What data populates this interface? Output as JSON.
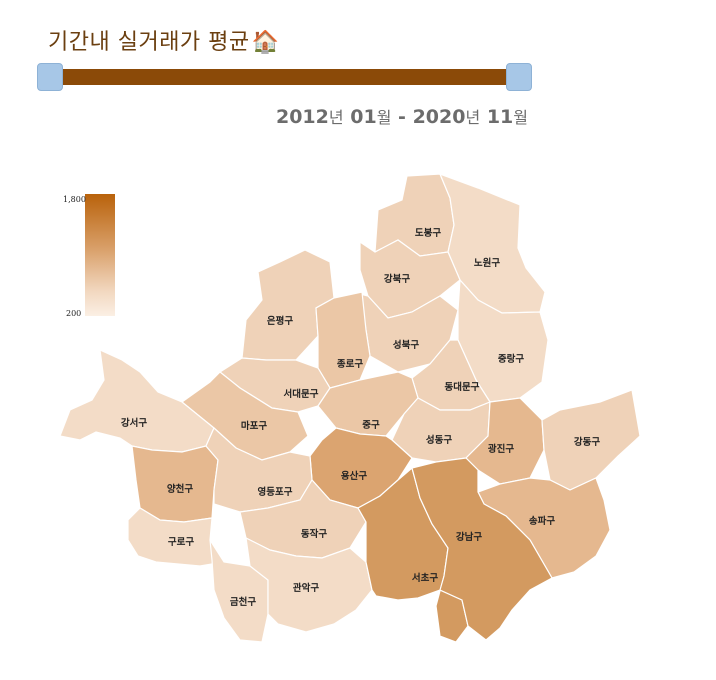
{
  "title": "기간내 실거래가 평균",
  "title_icon": "house-emoji",
  "period": {
    "start_year": "2012",
    "start_month": "01",
    "end_year": "2020",
    "end_month": "11",
    "year_unit": "년",
    "month_unit": "월",
    "separator": "-"
  },
  "legend": {
    "max": "1,800",
    "min": "200",
    "color_high": "#b9620b",
    "color_low": "#fbefe4"
  },
  "map_colors": {
    "very_light": "#f3dcc7",
    "light": "#efd2b8",
    "medium_light": "#ebc7a6",
    "medium": "#e5b88f",
    "strong": "#dba470",
    "strongest": "#d39a60"
  },
  "districts": [
    {
      "id": "dobong",
      "name": "도봉구"
    },
    {
      "id": "nowon",
      "name": "노원구"
    },
    {
      "id": "gangbuk",
      "name": "강북구"
    },
    {
      "id": "eunpyeong",
      "name": "은평구"
    },
    {
      "id": "seongbuk",
      "name": "성북구"
    },
    {
      "id": "jungnang",
      "name": "중랑구"
    },
    {
      "id": "jongno",
      "name": "종로구"
    },
    {
      "id": "dongdaemun",
      "name": "동대문구"
    },
    {
      "id": "seodaemun",
      "name": "서대문구"
    },
    {
      "id": "gangseo",
      "name": "강서구"
    },
    {
      "id": "mapo",
      "name": "마포구"
    },
    {
      "id": "jung",
      "name": "중구"
    },
    {
      "id": "seongdong",
      "name": "성동구"
    },
    {
      "id": "gwangjin",
      "name": "광진구"
    },
    {
      "id": "gangdong",
      "name": "강동구"
    },
    {
      "id": "yongsan",
      "name": "용산구"
    },
    {
      "id": "yangcheon",
      "name": "양천구"
    },
    {
      "id": "yeongdeungpo",
      "name": "영등포구"
    },
    {
      "id": "songpa",
      "name": "송파구"
    },
    {
      "id": "guro",
      "name": "구로구"
    },
    {
      "id": "dongjak",
      "name": "동작구"
    },
    {
      "id": "gangnam",
      "name": "강남구"
    },
    {
      "id": "seocho",
      "name": "서초구"
    },
    {
      "id": "gwanak",
      "name": "관악구"
    },
    {
      "id": "geumcheon",
      "name": "금천구"
    }
  ]
}
